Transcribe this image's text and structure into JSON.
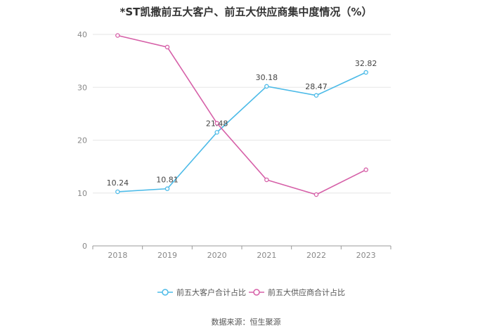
{
  "chart_data": {
    "type": "line",
    "title": "*ST凯撒前五大客户、前五大供应商集中度情况（%）",
    "categories": [
      "2018",
      "2019",
      "2020",
      "2021",
      "2022",
      "2023"
    ],
    "series": [
      {
        "name": "前五大客户合计占比",
        "values": [
          10.24,
          10.81,
          21.48,
          30.18,
          28.47,
          32.82
        ],
        "labels": [
          "10.24",
          "10.81",
          "21.48",
          "30.18",
          "28.47",
          "32.82"
        ],
        "color": "#4dbbe8"
      },
      {
        "name": "前五大供应商合计占比",
        "values": [
          39.8,
          37.6,
          23.2,
          12.5,
          9.7,
          14.4
        ],
        "labels": [],
        "color": "#d660a8"
      }
    ],
    "yticks": [
      "0",
      "10",
      "20",
      "30",
      "40"
    ],
    "ylim": [
      0,
      40
    ],
    "xlabel": "",
    "ylabel": "",
    "grid": true,
    "legend": "bottom-center"
  },
  "source": "数据来源：恒生聚源"
}
